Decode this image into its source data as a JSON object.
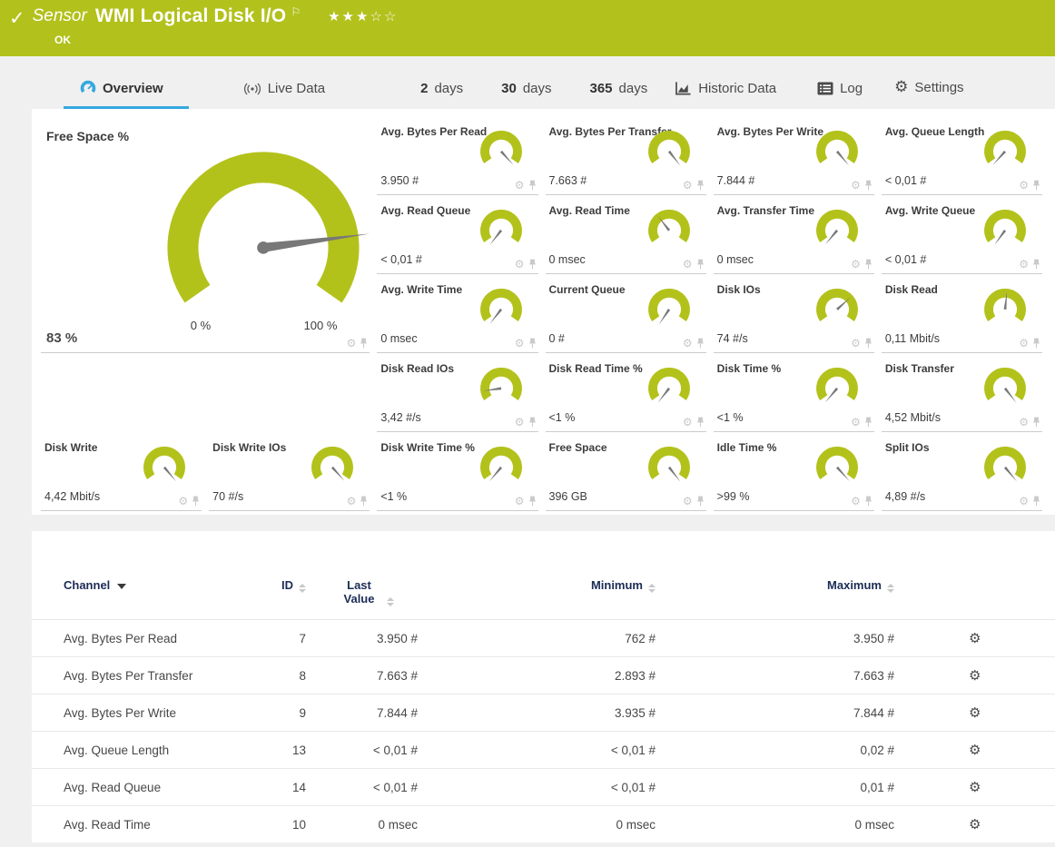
{
  "colors": {
    "green": "#b3c21b",
    "blue": "#35a8e0",
    "navy": "#1b2c55"
  },
  "icons": {
    "gear": "⚙",
    "check": "✓",
    "flag": "⚐"
  },
  "banner": {
    "sensor_label": "Sensor",
    "title": "WMI Logical Disk I/O",
    "status": "OK",
    "rating_filled": "★★★",
    "rating_empty": "☆☆"
  },
  "tabs": {
    "overview": "Overview",
    "live_data": "Live Data",
    "days2_num": "2",
    "days2_label": "days",
    "days30_num": "30",
    "days30_label": "days",
    "days365_num": "365",
    "days365_label": "days",
    "historic": "Historic Data",
    "log": "Log",
    "settings": "Settings"
  },
  "big_gauge": {
    "title": "Free Space %",
    "value": "83 %",
    "min_label": "0 %",
    "max_label": "100 %",
    "percent": 83,
    "needle_deg": 82.5
  },
  "gauges": [
    {
      "title": "Avg. Bytes Per Read",
      "value": "3.950 #",
      "needle_deg": 138
    },
    {
      "title": "Avg. Bytes Per Transfer",
      "value": "7.663 #",
      "needle_deg": 142
    },
    {
      "title": "Avg. Bytes Per Write",
      "value": "7.844 #",
      "needle_deg": 140
    },
    {
      "title": "Avg. Queue Length",
      "value": "< 0,01 #",
      "needle_deg": -138
    },
    {
      "title": "Avg. Read Queue",
      "value": "< 0,01 #",
      "needle_deg": -142
    },
    {
      "title": "Avg. Read Time",
      "value": "0 msec",
      "needle_deg": -38
    },
    {
      "title": "Avg. Transfer Time",
      "value": "0 msec",
      "needle_deg": -140
    },
    {
      "title": "Avg. Write Queue",
      "value": "< 0,01 #",
      "needle_deg": -144
    },
    {
      "title": "Avg. Write Time",
      "value": "0 msec",
      "needle_deg": -142
    },
    {
      "title": "Current Queue",
      "value": "0 #",
      "needle_deg": -146
    },
    {
      "title": "Disk IOs",
      "value": "74 #/s",
      "needle_deg": 48
    },
    {
      "title": "Disk Read",
      "value": "0,11 Mbit/s",
      "needle_deg": 6
    },
    {
      "title": "Disk Read IOs",
      "value": "3,42 #/s",
      "needle_deg": -98
    },
    {
      "title": "Disk Read Time %",
      "value": "<1 %",
      "needle_deg": -142
    },
    {
      "title": "Disk Time %",
      "value": "<1 %",
      "needle_deg": -140
    },
    {
      "title": "Disk Transfer",
      "value": "4,52 Mbit/s",
      "needle_deg": 142
    },
    {
      "title": "Disk Write",
      "value": "4,42 Mbit/s",
      "needle_deg": 140
    },
    {
      "title": "Disk Write IOs",
      "value": "70 #/s",
      "needle_deg": 138
    },
    {
      "title": "Disk Write Time %",
      "value": "<1 %",
      "needle_deg": -140
    },
    {
      "title": "Free Space",
      "value": "396 GB",
      "needle_deg": 142
    },
    {
      "title": "Idle Time %",
      "value": ">99 %",
      "needle_deg": 138
    },
    {
      "title": "Split IOs",
      "value": "4,89 #/s",
      "needle_deg": 140
    }
  ],
  "table": {
    "headers": {
      "channel": "Channel",
      "id": "ID",
      "last_value": "Last Value",
      "minimum": "Minimum",
      "maximum": "Maximum"
    },
    "rows": [
      {
        "channel": "Avg. Bytes Per Read",
        "id": "7",
        "last": "3.950 #",
        "min": "762 #",
        "max": "3.950 #"
      },
      {
        "channel": "Avg. Bytes Per Transfer",
        "id": "8",
        "last": "7.663 #",
        "min": "2.893 #",
        "max": "7.663 #"
      },
      {
        "channel": "Avg. Bytes Per Write",
        "id": "9",
        "last": "7.844 #",
        "min": "3.935 #",
        "max": "7.844 #"
      },
      {
        "channel": "Avg. Queue Length",
        "id": "13",
        "last": "< 0,01 #",
        "min": "< 0,01 #",
        "max": "0,02 #"
      },
      {
        "channel": "Avg. Read Queue",
        "id": "14",
        "last": "< 0,01 #",
        "min": "< 0,01 #",
        "max": "0,01 #"
      },
      {
        "channel": "Avg. Read Time",
        "id": "10",
        "last": "0 msec",
        "min": "0 msec",
        "max": "0 msec"
      }
    ]
  }
}
